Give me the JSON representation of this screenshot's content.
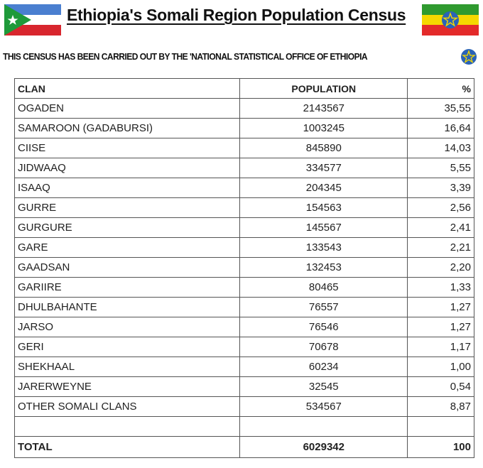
{
  "title": "Ethiopia's Somali Region Population Census",
  "subtitle": "THIS CENSUS HAS BEEN CARRIED OUT BY THE 'NATIONAL STATISTICAL OFFICE OF ETHIOPIA",
  "colors": {
    "somali_blue": "#4a7fd0",
    "somali_green": "#1e9a3a",
    "somali_red": "#d8262e",
    "eth_green": "#2f9a2f",
    "eth_yellow": "#f5d800",
    "eth_red": "#e32a2a",
    "emblem_blue": "#2a63b8"
  },
  "table": {
    "headers": {
      "clan": "CLAN",
      "population": "POPULATION",
      "percent": "%"
    },
    "rows": [
      {
        "clan": "OGADEN",
        "population": "2143567",
        "percent": "35,55"
      },
      {
        "clan": "SAMAROON (GADABURSI)",
        "population": "1003245",
        "percent": "16,64"
      },
      {
        "clan": "CIISE",
        "population": "845890",
        "percent": "14,03"
      },
      {
        "clan": "JIDWAAQ",
        "population": "334577",
        "percent": "5,55"
      },
      {
        "clan": "ISAAQ",
        "population": "204345",
        "percent": "3,39"
      },
      {
        "clan": "GURRE",
        "population": "154563",
        "percent": "2,56"
      },
      {
        "clan": "GURGURE",
        "population": "145567",
        "percent": "2,41"
      },
      {
        "clan": "GARE",
        "population": "133543",
        "percent": "2,21"
      },
      {
        "clan": "GAADSAN",
        "population": "132453",
        "percent": "2,20"
      },
      {
        "clan": "GARIIRE",
        "population": "80465",
        "percent": "1,33"
      },
      {
        "clan": "DHULBAHANTE",
        "population": "76557",
        "percent": "1,27"
      },
      {
        "clan": "JARSO",
        "population": "76546",
        "percent": "1,27"
      },
      {
        "clan": "GERI",
        "population": "70678",
        "percent": "1,17"
      },
      {
        "clan": "SHEKHAAL",
        "population": "60234",
        "percent": "1,00"
      },
      {
        "clan": "JARERWEYNE",
        "population": "32545",
        "percent": "0,54"
      },
      {
        "clan": "OTHER SOMALI CLANS",
        "population": "534567",
        "percent": "8,87"
      }
    ],
    "total": {
      "label": "TOTAL",
      "population": "6029342",
      "percent": "100"
    }
  }
}
